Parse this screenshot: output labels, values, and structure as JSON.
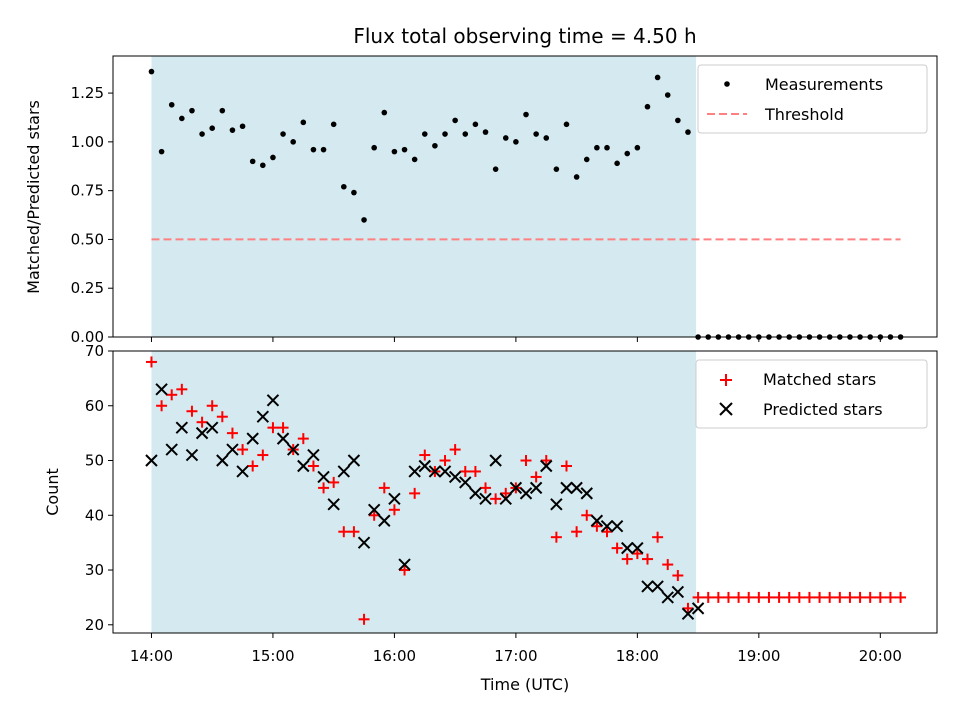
{
  "title": "Flux total observing time = 4.50 h",
  "colors": {
    "shade": "#d4eaf0",
    "threshold": "#ff8080",
    "matched": "#ff0000",
    "predicted": "#000000",
    "measurement": "#000000"
  },
  "top": {
    "ylabel": "Matched/Predicted stars",
    "ylim": [
      0,
      1.44
    ],
    "yticks": [
      0,
      0.25,
      0.5,
      0.75,
      1.0,
      1.25
    ],
    "yticklabels": [
      "0.00",
      "0.25",
      "0.50",
      "0.75",
      "1.00",
      "1.25"
    ],
    "legend": {
      "measurements": "Measurements",
      "threshold": "Threshold"
    }
  },
  "bottom": {
    "ylabel": "Count",
    "xlabel": "Time (UTC)",
    "ylim": [
      18.5,
      70
    ],
    "yticks": [
      20,
      30,
      40,
      50,
      60,
      70
    ],
    "yticklabels": [
      "20",
      "30",
      "40",
      "50",
      "60",
      "70"
    ],
    "legend": {
      "matched": "Matched stars",
      "predicted": "Predicted stars"
    }
  },
  "xaxis": {
    "xlim": [
      "13:41",
      "20:28"
    ],
    "ticks": [
      "14:00",
      "15:00",
      "16:00",
      "17:00",
      "18:00",
      "19:00",
      "20:00"
    ]
  },
  "chart_data": [
    {
      "type": "scatter",
      "title": "Flux total observing time = 4.50 h",
      "xlabel": "",
      "ylabel": "Matched/Predicted stars",
      "ylim": [
        0,
        1.44
      ],
      "shaded_region": [
        "14:00",
        "18:29"
      ],
      "threshold": {
        "name": "Threshold",
        "y": 0.5,
        "x_range": [
          "14:00",
          "20:10"
        ],
        "style": "dashed"
      },
      "legend_position": "top-right",
      "series": [
        {
          "name": "Measurements",
          "x": [
            "14:00",
            "14:05",
            "14:10",
            "14:15",
            "14:20",
            "14:25",
            "14:30",
            "14:35",
            "14:40",
            "14:45",
            "14:50",
            "14:55",
            "15:00",
            "15:05",
            "15:10",
            "15:15",
            "15:20",
            "15:25",
            "15:30",
            "15:35",
            "15:40",
            "15:45",
            "15:50",
            "15:55",
            "16:00",
            "16:05",
            "16:10",
            "16:15",
            "16:20",
            "16:25",
            "16:30",
            "16:35",
            "16:40",
            "16:45",
            "16:50",
            "16:55",
            "17:00",
            "17:05",
            "17:10",
            "17:15",
            "17:20",
            "17:25",
            "17:30",
            "17:35",
            "17:40",
            "17:45",
            "17:50",
            "17:55",
            "18:00",
            "18:05",
            "18:10",
            "18:15",
            "18:20",
            "18:25",
            "18:30",
            "18:35",
            "18:40",
            "18:45",
            "18:50",
            "18:55",
            "19:00",
            "19:05",
            "19:10",
            "19:15",
            "19:20",
            "19:25",
            "19:30",
            "19:35",
            "19:40",
            "19:45",
            "19:50",
            "19:55",
            "20:00",
            "20:05",
            "20:10"
          ],
          "y": [
            1.36,
            0.95,
            1.19,
            1.12,
            1.16,
            1.04,
            1.07,
            1.16,
            1.06,
            1.08,
            0.9,
            0.88,
            0.92,
            1.04,
            1.0,
            1.1,
            0.96,
            0.96,
            1.09,
            0.77,
            0.74,
            0.6,
            0.97,
            1.15,
            0.95,
            0.96,
            0.91,
            1.04,
            0.98,
            1.04,
            1.11,
            1.04,
            1.09,
            1.05,
            0.86,
            1.02,
            1.0,
            1.14,
            1.04,
            1.02,
            0.86,
            1.09,
            0.82,
            0.91,
            0.97,
            0.97,
            0.89,
            0.94,
            0.97,
            1.18,
            1.33,
            1.24,
            1.11,
            1.05,
            0.0,
            0.0,
            0.0,
            0.0,
            0.0,
            0.0,
            0.0,
            0.0,
            0.0,
            0.0,
            0.0,
            0.0,
            0.0,
            0.0,
            0.0,
            0.0,
            0.0,
            0.0,
            0.0,
            0.0,
            0.0
          ]
        }
      ]
    },
    {
      "type": "scatter",
      "xlabel": "Time (UTC)",
      "ylabel": "Count",
      "ylim": [
        18.5,
        70
      ],
      "shaded_region": [
        "14:00",
        "18:29"
      ],
      "legend_position": "top-right",
      "series": [
        {
          "name": "Matched stars",
          "marker": "plus",
          "x": [
            "14:00",
            "14:05",
            "14:10",
            "14:15",
            "14:20",
            "14:25",
            "14:30",
            "14:35",
            "14:40",
            "14:45",
            "14:50",
            "14:55",
            "15:00",
            "15:05",
            "15:10",
            "15:15",
            "15:20",
            "15:25",
            "15:30",
            "15:35",
            "15:40",
            "15:45",
            "15:50",
            "15:55",
            "16:00",
            "16:05",
            "16:10",
            "16:15",
            "16:20",
            "16:25",
            "16:30",
            "16:35",
            "16:40",
            "16:45",
            "16:50",
            "16:55",
            "17:00",
            "17:05",
            "17:10",
            "17:15",
            "17:20",
            "17:25",
            "17:30",
            "17:35",
            "17:40",
            "17:45",
            "17:50",
            "17:55",
            "18:00",
            "18:05",
            "18:10",
            "18:15",
            "18:20",
            "18:25",
            "18:30",
            "18:35",
            "18:40",
            "18:45",
            "18:50",
            "18:55",
            "19:00",
            "19:05",
            "19:10",
            "19:15",
            "19:20",
            "19:25",
            "19:30",
            "19:35",
            "19:40",
            "19:45",
            "19:50",
            "19:55",
            "20:00",
            "20:05",
            "20:10"
          ],
          "y": [
            68,
            60,
            62,
            63,
            59,
            57,
            60,
            58,
            55,
            52,
            49,
            51,
            56,
            56,
            52,
            54,
            49,
            45,
            46,
            37,
            37,
            21,
            40,
            45,
            41,
            30,
            44,
            51,
            48,
            50,
            52,
            48,
            48,
            45,
            43,
            44,
            45,
            50,
            47,
            50,
            36,
            49,
            37,
            40,
            38,
            37,
            34,
            32,
            33,
            32,
            36,
            31,
            29,
            23,
            25,
            25,
            25,
            25,
            25,
            25,
            25,
            25,
            25,
            25,
            25,
            25,
            25,
            25,
            25,
            25,
            25,
            25,
            25,
            25,
            25
          ]
        },
        {
          "name": "Predicted stars",
          "marker": "x",
          "x": [
            "14:00",
            "14:05",
            "14:10",
            "14:15",
            "14:20",
            "14:25",
            "14:30",
            "14:35",
            "14:40",
            "14:45",
            "14:50",
            "14:55",
            "15:00",
            "15:05",
            "15:10",
            "15:15",
            "15:20",
            "15:25",
            "15:30",
            "15:35",
            "15:40",
            "15:45",
            "15:50",
            "15:55",
            "16:00",
            "16:05",
            "16:10",
            "16:15",
            "16:20",
            "16:25",
            "16:30",
            "16:35",
            "16:40",
            "16:45",
            "16:50",
            "16:55",
            "17:00",
            "17:05",
            "17:10",
            "17:15",
            "17:20",
            "17:25",
            "17:30",
            "17:35",
            "17:40",
            "17:45",
            "17:50",
            "17:55",
            "18:00",
            "18:05",
            "18:10",
            "18:15",
            "18:20",
            "18:25",
            "18:30"
          ],
          "y": [
            50,
            63,
            52,
            56,
            51,
            55,
            56,
            50,
            52,
            48,
            54,
            58,
            61,
            54,
            52,
            49,
            51,
            47,
            42,
            48,
            50,
            35,
            41,
            39,
            43,
            31,
            48,
            49,
            48,
            48,
            47,
            46,
            44,
            43,
            50,
            43,
            45,
            44,
            45,
            49,
            42,
            45,
            45,
            44,
            39,
            38,
            38,
            34,
            34,
            27,
            27,
            25,
            26,
            22,
            23
          ]
        }
      ]
    }
  ]
}
